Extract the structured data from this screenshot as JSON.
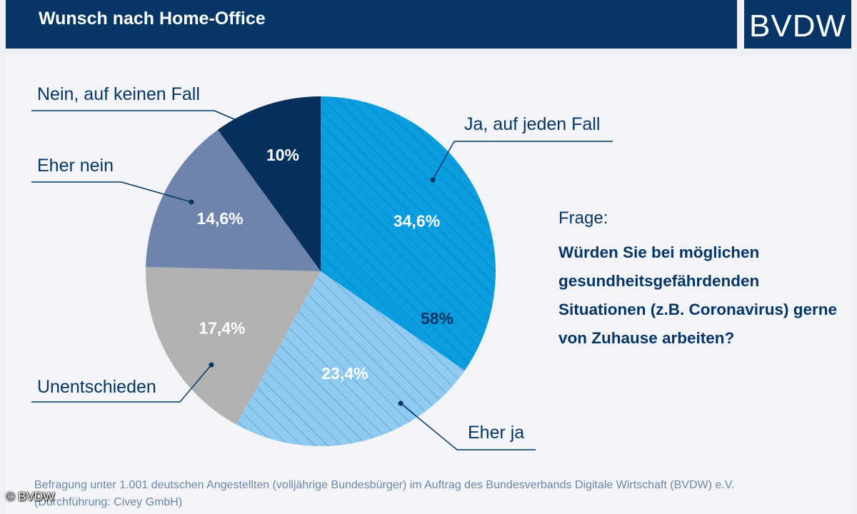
{
  "header": {
    "title": "Wunsch nach Home-Office",
    "logo": "BVDW"
  },
  "question": {
    "label": "Frage:",
    "text": "Würden Sie bei möglichen gesundheitsgefährdenden Situationen (z.B. Coronavirus) gerne von Zuhause arbeiten?"
  },
  "footnote": {
    "line1": "Befragung unter 1.001 deutschen Angestellten (volljährige Bundesbürger) im Auftrag des Bundesverbands Digitale Wirtschaft (BVDW) e.V.",
    "line2": "(Durchführung: Civey GmbH)"
  },
  "copyright": "© BVDW",
  "chart_data": {
    "type": "pie",
    "slices": [
      {
        "label": "Ja, auf jeden Fall",
        "value": 34.6,
        "display": "34,6%",
        "color": "#0a9ee0",
        "hatched": true
      },
      {
        "label": "Eher ja",
        "value": 23.4,
        "display": "23,4%",
        "color": "#8fcaf0",
        "hatched": true
      },
      {
        "label": "Unentschieden",
        "value": 17.4,
        "display": "17,4%",
        "color": "#b1b1b1",
        "hatched": false
      },
      {
        "label": "Eher nein",
        "value": 14.6,
        "display": "14,6%",
        "color": "#6f84ad",
        "hatched": false
      },
      {
        "label": "Nein, auf keinen Fall",
        "value": 10,
        "display": "10%",
        "color": "#07305c",
        "hatched": false
      }
    ],
    "combined_label": {
      "text": "58%",
      "of": [
        "Ja, auf jeden Fall",
        "Eher ja"
      ]
    },
    "start": "12 o'clock, clockwise"
  }
}
